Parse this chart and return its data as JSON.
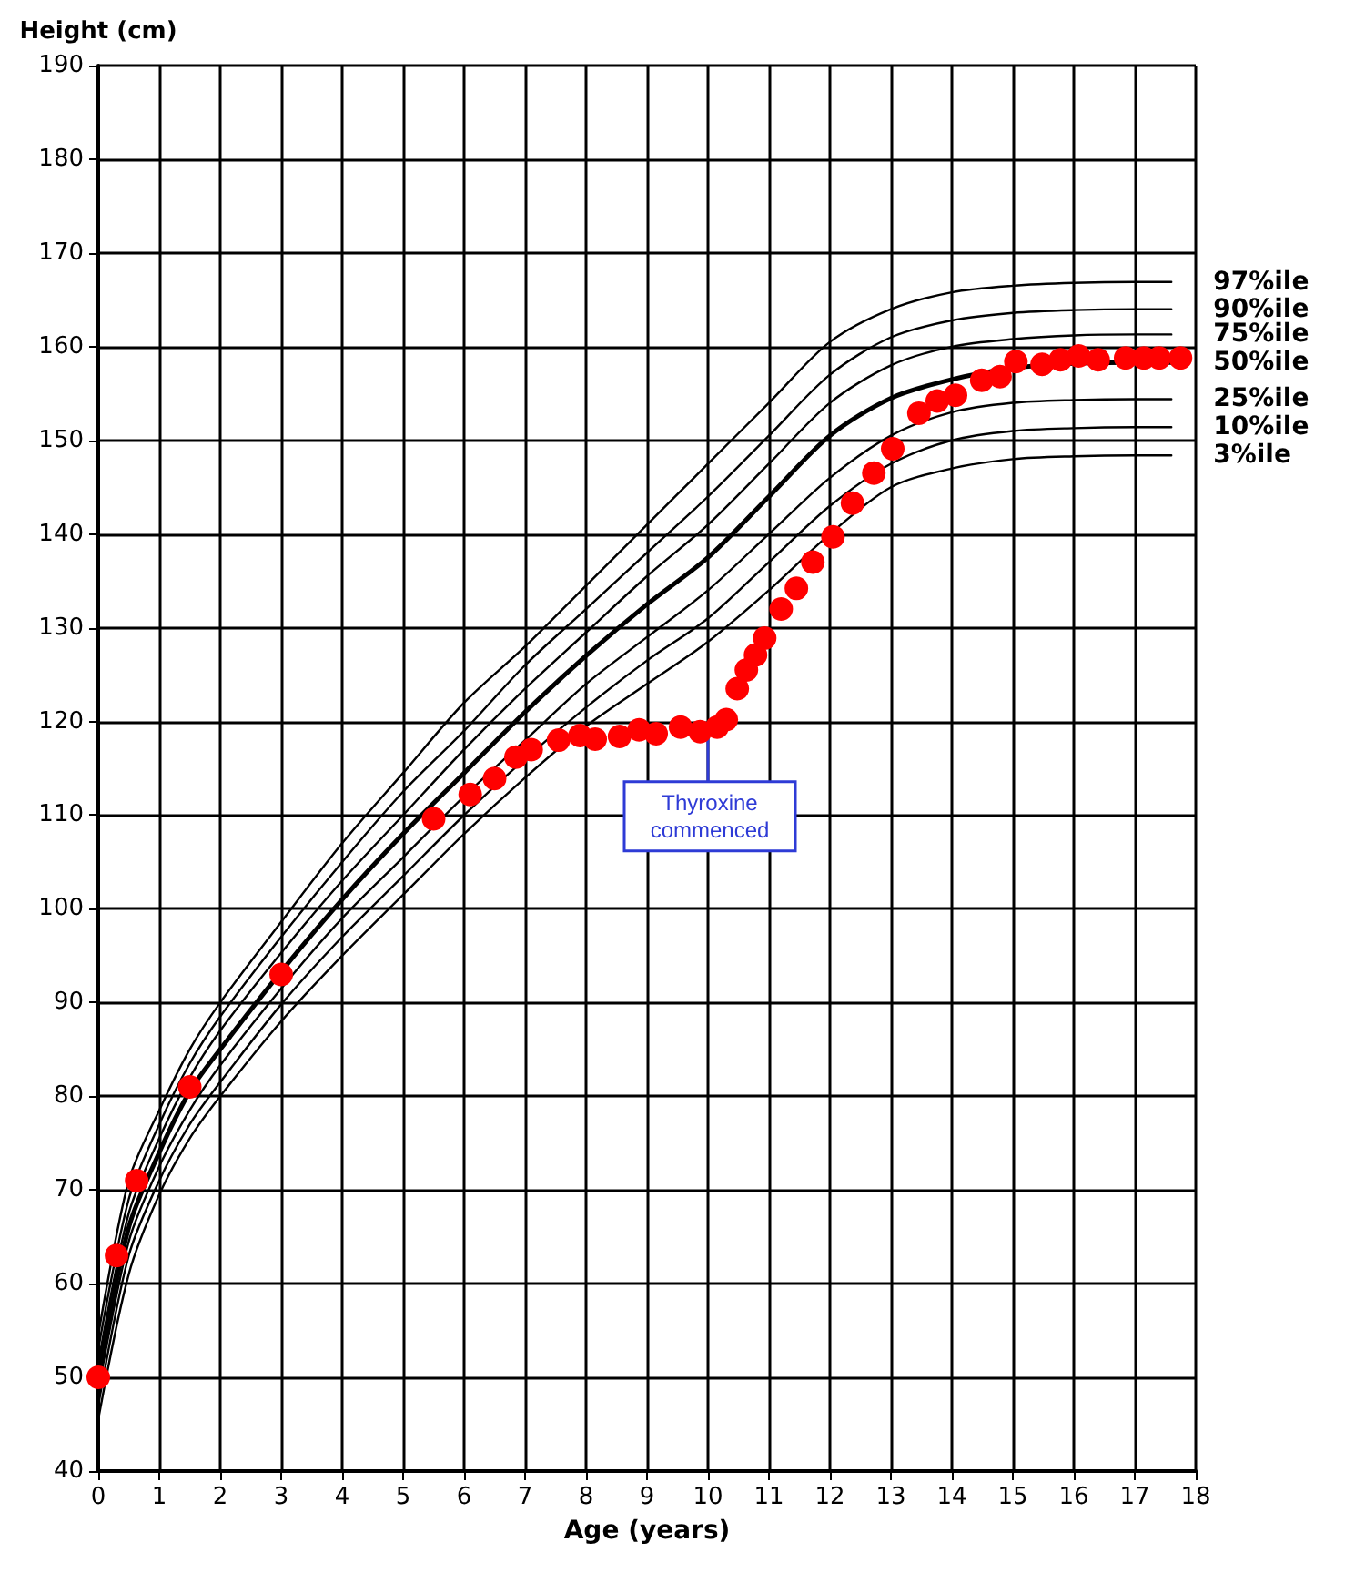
{
  "chart_data": {
    "type": "line",
    "xlabel": "Age (years)",
    "ylabel": "Height (cm)",
    "xlim": [
      0,
      18
    ],
    "xticks": [
      0,
      1,
      2,
      3,
      4,
      5,
      6,
      7,
      8,
      9,
      10,
      11,
      12,
      13,
      14,
      15,
      16,
      17,
      18
    ],
    "ylim": [
      40,
      190
    ],
    "yticks": [
      40,
      50,
      60,
      70,
      80,
      90,
      100,
      110,
      120,
      130,
      140,
      150,
      160,
      170,
      180,
      190
    ],
    "grid": true,
    "legend": false,
    "marker": "none",
    "line_style": "solid",
    "x": [
      0,
      0.5,
      1,
      1.5,
      2,
      3,
      4,
      5,
      6,
      7,
      8,
      9,
      10,
      11,
      12,
      13,
      14,
      15,
      16,
      17,
      17.6
    ],
    "series": [
      {
        "name": "97%ile",
        "color": "#000000",
        "values": [
          54.5,
          71,
          78.5,
          85,
          90,
          98.6,
          107,
          114.5,
          122,
          128,
          134.5,
          141,
          147.5,
          154,
          160.5,
          164,
          165.8,
          166.5,
          166.8,
          166.9,
          166.9
        ]
      },
      {
        "name": "90%ile",
        "color": "#000000",
        "values": [
          53,
          69,
          77,
          83.5,
          88.5,
          97,
          105,
          112.5,
          119,
          126,
          132,
          138,
          144,
          150.5,
          157,
          161,
          162.8,
          163.6,
          163.9,
          164,
          164
        ]
      },
      {
        "name": "75%ile",
        "color": "#000000",
        "values": [
          51.5,
          67.5,
          75.5,
          82,
          87,
          95.3,
          103,
          110,
          117,
          123.5,
          129.5,
          135.5,
          141,
          147.5,
          154,
          158,
          160,
          160.8,
          161.2,
          161.3,
          161.3
        ]
      },
      {
        "name": "50%ile",
        "color": "#000000",
        "values": [
          50,
          66,
          74,
          80.5,
          85,
          93.3,
          101,
          108,
          114.5,
          121,
          127,
          132.5,
          137.5,
          144,
          150.5,
          154.5,
          156.5,
          157.7,
          158.2,
          158.3,
          158.3
        ]
      },
      {
        "name": "25%ile",
        "color": "#000000",
        "values": [
          48.5,
          64.5,
          72.5,
          78.5,
          83.3,
          91.5,
          99,
          105.5,
          112,
          118,
          124,
          129,
          134,
          140,
          146,
          150.5,
          153,
          154,
          154.3,
          154.4,
          154.4
        ]
      },
      {
        "name": "10%ile",
        "color": "#000000",
        "values": [
          47,
          63,
          71,
          77,
          81.5,
          89.8,
          97,
          103.5,
          110,
          116,
          121.5,
          126.5,
          131,
          137,
          143,
          147.5,
          150,
          151,
          151.3,
          151.4,
          151.4
        ]
      },
      {
        "name": "3%ile",
        "color": "#000000",
        "values": [
          45.5,
          61,
          69.5,
          75.5,
          80,
          88,
          95,
          101.5,
          108,
          114,
          119.5,
          124,
          128.5,
          134,
          140,
          145,
          147,
          148,
          148.3,
          148.4,
          148.4
        ]
      },
      {
        "type": "scatter",
        "marker": "circle",
        "color": "#ff0000",
        "x": [
          0,
          0.3,
          0.63,
          1.5,
          3,
          5.5,
          6.1,
          6.5,
          6.85,
          7.1,
          7.55,
          7.9,
          8.15,
          8.55,
          8.87,
          9.15,
          9.55,
          9.87,
          10.15,
          10.3,
          10.48,
          10.63,
          10.78,
          10.93,
          11.2,
          11.45,
          11.72,
          12.05,
          12.37,
          12.72,
          13.03,
          13.46,
          13.76,
          14.06,
          14.49,
          14.79,
          15.05,
          15.48,
          15.78,
          16.08,
          16.4,
          16.85,
          17.15,
          17.4,
          17.75
        ],
        "values": [
          50,
          63,
          71,
          81,
          93,
          109.6,
          112.2,
          113.9,
          116.2,
          117,
          118,
          118.5,
          118.1,
          118.4,
          119.1,
          118.7,
          119.4,
          118.9,
          119.4,
          120.2,
          123.5,
          125.5,
          127.1,
          128.9,
          132,
          134.2,
          137,
          139.7,
          143.3,
          146.5,
          149.1,
          152.9,
          154.2,
          154.8,
          156.4,
          156.8,
          158.4,
          158.1,
          158.6,
          159,
          158.6,
          158.8,
          158.8,
          158.8,
          158.8
        ]
      }
    ],
    "annotations": [
      {
        "text": "Thyroxine\ncommenced",
        "x": 10,
        "y": 119
      }
    ]
  }
}
